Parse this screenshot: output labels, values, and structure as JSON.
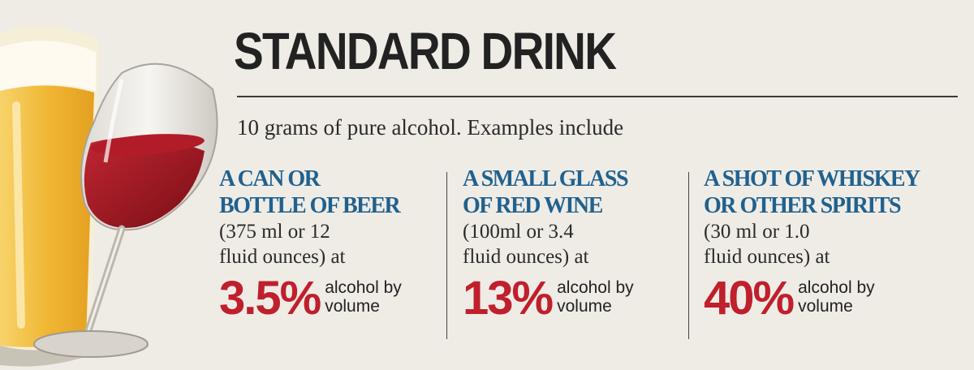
{
  "title": "STANDARD DRINK",
  "subtitle": "10 grams of pure alcohol. Examples include",
  "items": [
    {
      "heading_line1": "A CAN OR",
      "heading_line2": "BOTTLE OF BEER",
      "desc_line1": "(375 ml or 12",
      "desc_line2": "fluid ounces) at",
      "percent": "3.5%",
      "unit_line1": "alcohol by",
      "unit_line2": "volume"
    },
    {
      "heading_line1": "A SMALL GLASS",
      "heading_line2": "OF RED WINE",
      "desc_line1": "(100ml or 3.4",
      "desc_line2": "fluid ounces) at",
      "percent": "13%",
      "unit_line1": "alcohol by",
      "unit_line2": "volume"
    },
    {
      "heading_line1": "A SHOT OF WHISKEY",
      "heading_line2": "OR OTHER SPIRITS",
      "desc_line1": "(30 ml or 1.0",
      "desc_line2": "fluid ounces) at",
      "percent": "40%",
      "unit_line1": "alcohol by",
      "unit_line2": "volume"
    }
  ],
  "colors": {
    "background": "#efece6",
    "heading": "#20618e",
    "percent": "#c01f2c",
    "beer": "#f2c14e",
    "wine": "#9e1620"
  }
}
